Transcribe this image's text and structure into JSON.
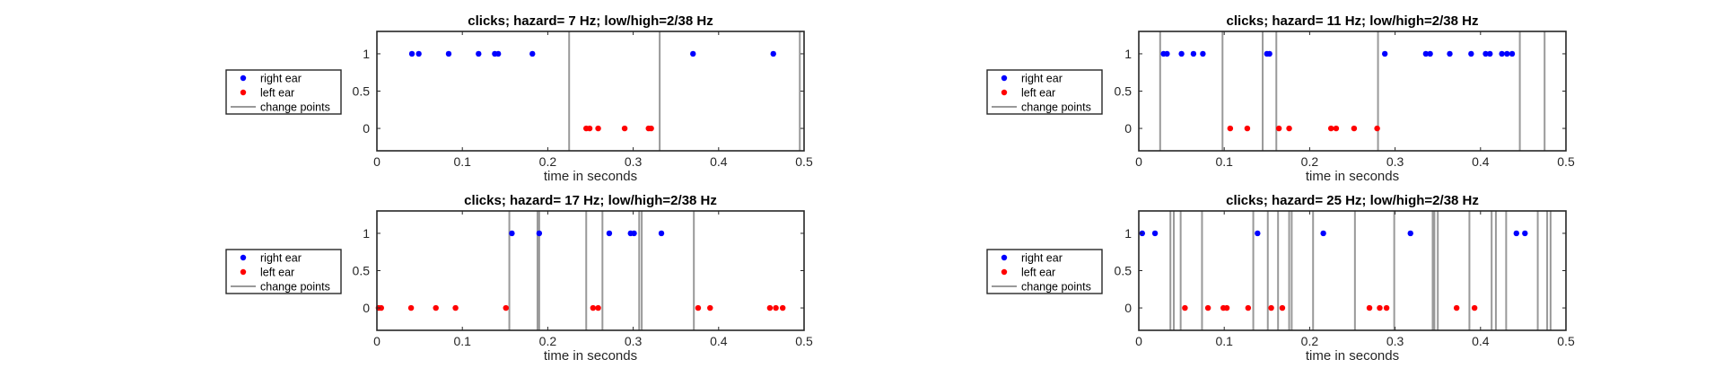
{
  "chart_data": [
    {
      "type": "scatter",
      "title": "clicks; hazard= 7 Hz; low/high=2/38 Hz",
      "xlabel": "time in seconds",
      "ylabel": "",
      "xlim": [
        0,
        0.5
      ],
      "ylim": [
        -0.3,
        1.3
      ],
      "xticks": [
        "0",
        "0.1",
        "0.2",
        "0.3",
        "0.4",
        "0.5"
      ],
      "yticks": [
        "0",
        "0.5",
        "1"
      ],
      "legend": {
        "placement": "outside-left",
        "entries": [
          "right ear",
          "left ear",
          "change points"
        ]
      },
      "series": [
        {
          "name": "right ear",
          "color": "#0000ff",
          "y": 1,
          "x": [
            0.041,
            0.049,
            0.084,
            0.119,
            0.138,
            0.142,
            0.182,
            0.37,
            0.464
          ]
        },
        {
          "name": "left ear",
          "color": "#ff0000",
          "y": 0,
          "x": [
            0.245,
            0.249,
            0.259,
            0.29,
            0.318,
            0.321
          ]
        },
        {
          "name": "change points",
          "color": "#999999",
          "type": "vline",
          "x": [
            0.225,
            0.331,
            0.495
          ]
        }
      ]
    },
    {
      "type": "scatter",
      "title": "clicks; hazard= 11 Hz; low/high=2/38 Hz",
      "xlabel": "time in seconds",
      "ylabel": "",
      "xlim": [
        0,
        0.5
      ],
      "ylim": [
        -0.3,
        1.3
      ],
      "xticks": [
        "0",
        "0.1",
        "0.2",
        "0.3",
        "0.4",
        "0.5"
      ],
      "yticks": [
        "0",
        "0.5",
        "1"
      ],
      "legend": {
        "placement": "outside-left",
        "entries": [
          "right ear",
          "left ear",
          "change points"
        ]
      },
      "series": [
        {
          "name": "right ear",
          "color": "#0000ff",
          "y": 1,
          "x": [
            0.029,
            0.033,
            0.05,
            0.064,
            0.075,
            0.15,
            0.153,
            0.288,
            0.336,
            0.341,
            0.364,
            0.389,
            0.406,
            0.411,
            0.425,
            0.431,
            0.437
          ]
        },
        {
          "name": "left ear",
          "color": "#ff0000",
          "y": 0,
          "x": [
            0.107,
            0.127,
            0.164,
            0.176,
            0.225,
            0.231,
            0.252,
            0.279
          ]
        },
        {
          "name": "change points",
          "color": "#999999",
          "type": "vline",
          "x": [
            0.025,
            0.098,
            0.145,
            0.161,
            0.28,
            0.446,
            0.475
          ]
        }
      ]
    },
    {
      "type": "scatter",
      "title": "clicks; hazard= 17 Hz; low/high=2/38 Hz",
      "xlabel": "time in seconds",
      "ylabel": "",
      "xlim": [
        0,
        0.5
      ],
      "ylim": [
        -0.3,
        1.3
      ],
      "xticks": [
        "0",
        "0.1",
        "0.2",
        "0.3",
        "0.4",
        "0.5"
      ],
      "yticks": [
        "0",
        "0.5",
        "1"
      ],
      "legend": {
        "placement": "outside-left",
        "entries": [
          "right ear",
          "left ear",
          "change points"
        ]
      },
      "series": [
        {
          "name": "right ear",
          "color": "#0000ff",
          "y": 1,
          "x": [
            0.158,
            0.19,
            0.272,
            0.297,
            0.301,
            0.333
          ]
        },
        {
          "name": "left ear",
          "color": "#ff0000",
          "y": 0,
          "x": [
            0.002,
            0.005,
            0.04,
            0.069,
            0.092,
            0.151,
            0.253,
            0.259,
            0.376,
            0.39,
            0.46,
            0.467,
            0.475
          ]
        },
        {
          "name": "change points",
          "color": "#999999",
          "type": "vline",
          "x": [
            0.155,
            0.188,
            0.19,
            0.245,
            0.264,
            0.307,
            0.31,
            0.371
          ]
        }
      ]
    },
    {
      "type": "scatter",
      "title": "clicks; hazard= 25 Hz; low/high=2/38 Hz",
      "xlabel": "time in seconds",
      "ylabel": "",
      "xlim": [
        0,
        0.5
      ],
      "ylim": [
        -0.3,
        1.3
      ],
      "xticks": [
        "0",
        "0.1",
        "0.2",
        "0.3",
        "0.4",
        "0.5"
      ],
      "yticks": [
        "0",
        "0.5",
        "1"
      ],
      "legend": {
        "placement": "outside-left",
        "entries": [
          "right ear",
          "left ear",
          "change points"
        ]
      },
      "series": [
        {
          "name": "right ear",
          "color": "#0000ff",
          "y": 1,
          "x": [
            0.004,
            0.019,
            0.139,
            0.216,
            0.318,
            0.442,
            0.452
          ]
        },
        {
          "name": "left ear",
          "color": "#ff0000",
          "y": 0,
          "x": [
            0.054,
            0.081,
            0.099,
            0.103,
            0.128,
            0.155,
            0.168,
            0.27,
            0.282,
            0.29,
            0.372,
            0.393
          ]
        },
        {
          "name": "change points",
          "color": "#999999",
          "type": "vline",
          "x": [
            0.037,
            0.041,
            0.049,
            0.074,
            0.134,
            0.151,
            0.163,
            0.176,
            0.179,
            0.204,
            0.253,
            0.299,
            0.344,
            0.346,
            0.35,
            0.387,
            0.413,
            0.418,
            0.43,
            0.467,
            0.478,
            0.482
          ]
        }
      ]
    }
  ]
}
